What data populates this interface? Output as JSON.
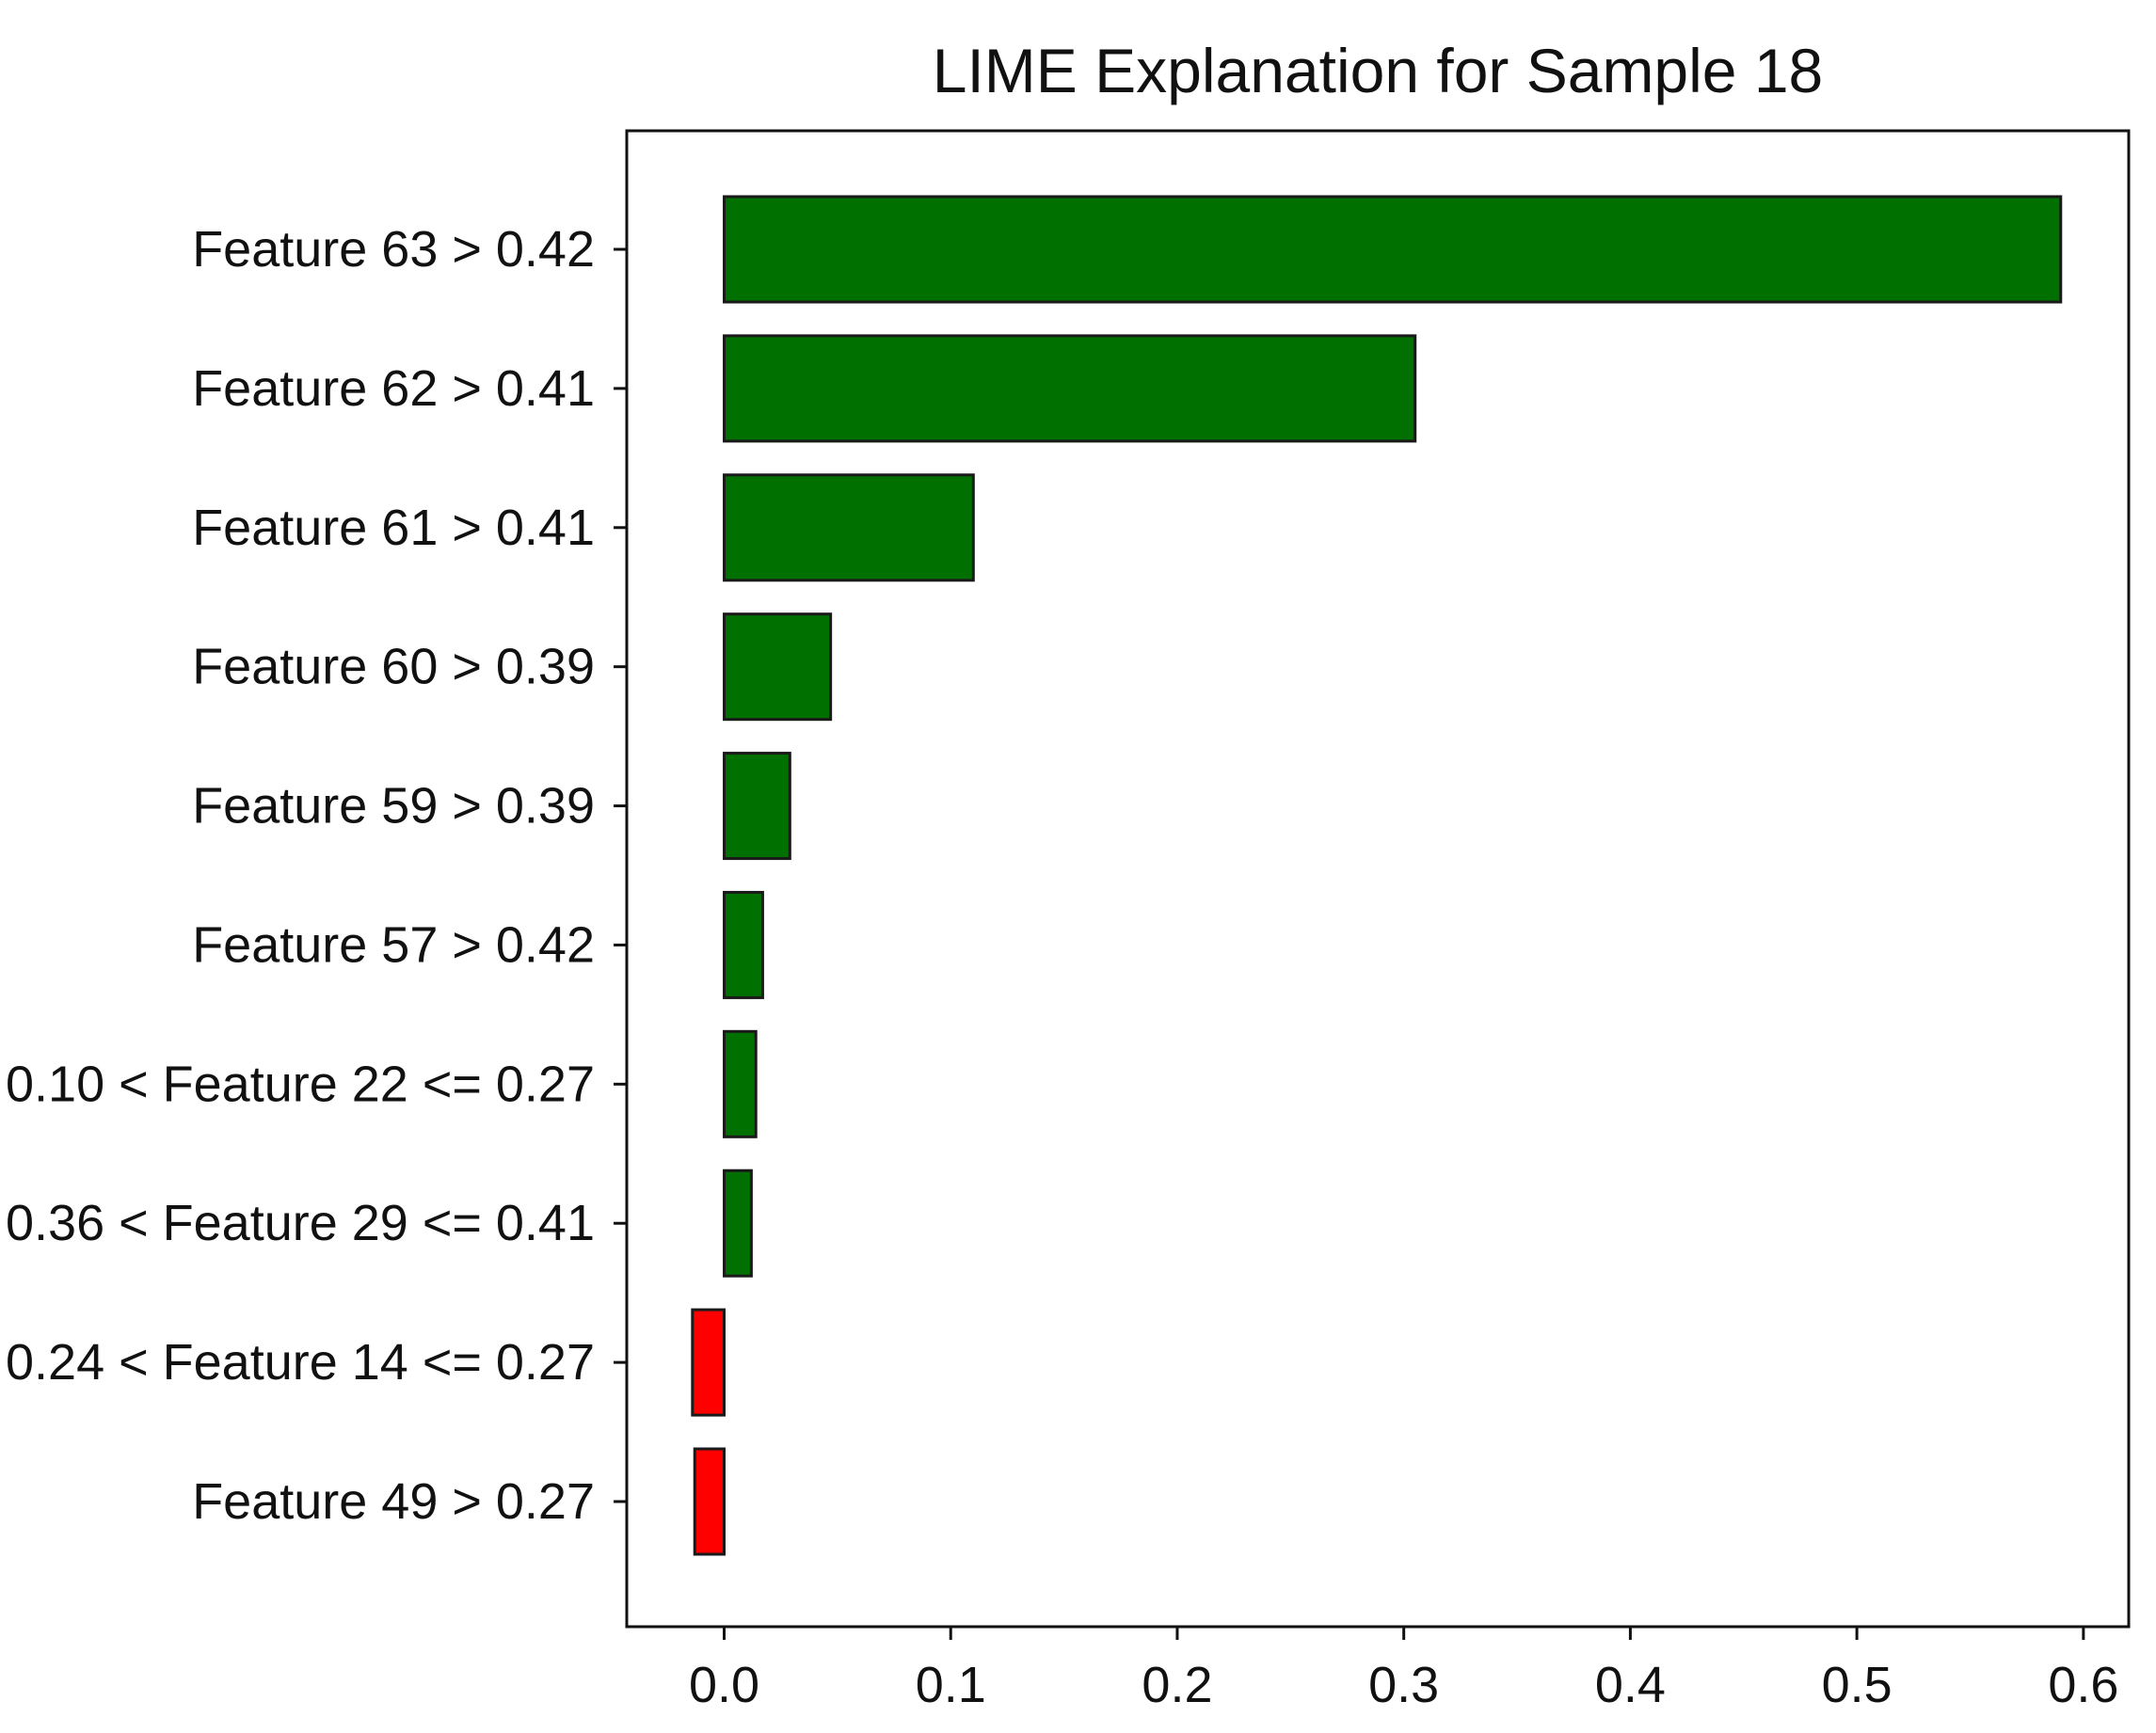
{
  "chart_data": {
    "type": "bar",
    "orientation": "horizontal",
    "title": "LIME Explanation for Sample 18",
    "xlabel": "",
    "ylabel": "",
    "xlim": [
      -0.043,
      0.62
    ],
    "xticks": [
      "0.0",
      "0.1",
      "0.2",
      "0.3",
      "0.4",
      "0.5",
      "0.6"
    ],
    "xtick_values": [
      0.0,
      0.1,
      0.2,
      0.3,
      0.4,
      0.5,
      0.6
    ],
    "grid": false,
    "legend": "none",
    "categories": [
      "Feature 63 > 0.42",
      "Feature 62 > 0.41",
      "Feature 61 > 0.41",
      "Feature 60 > 0.39",
      "Feature 59 > 0.39",
      "Feature 57 > 0.42",
      "0.10 < Feature 22 <= 0.27",
      "0.36 < Feature 29 <= 0.41",
      "0.24 < Feature 14 <= 0.27",
      "Feature 49 > 0.27"
    ],
    "values": [
      0.59,
      0.305,
      0.11,
      0.047,
      0.029,
      0.017,
      0.014,
      0.012,
      -0.014,
      -0.013
    ],
    "colors": {
      "positive": "#007000",
      "negative": "#ff0000",
      "edge": "#1a1a1a"
    }
  }
}
